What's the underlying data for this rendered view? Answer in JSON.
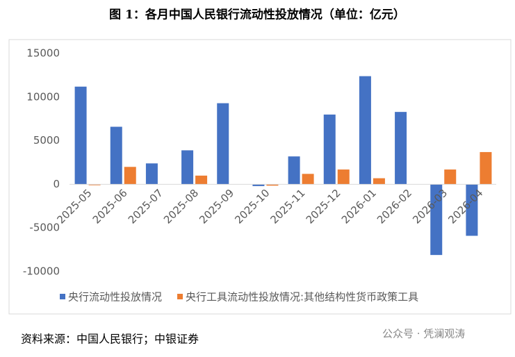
{
  "chart_data": {
    "type": "bar",
    "title": "图 1：各月中国人民银行流动性投放情况（单位：亿元）",
    "categories": [
      "2025-05",
      "2025-06",
      "2025-07",
      "2025-08",
      "2025-09",
      "2025-10",
      "2025-11",
      "2025-12",
      "2026-01",
      "2026-02",
      "2026-03",
      "2026-04"
    ],
    "series": [
      {
        "name": "央行流动性投放情况",
        "color": "#4472c4",
        "values": [
          11200,
          6600,
          2400,
          3900,
          9300,
          -200,
          3200,
          8000,
          12400,
          8300,
          -8100,
          -5900
        ]
      },
      {
        "name": "央行工具流动性投放情况:其他结构性货币政策工具",
        "color": "#ed7d31",
        "values": [
          -100,
          2000,
          null,
          1000,
          null,
          -150,
          1200,
          1700,
          700,
          null,
          1700,
          3700
        ]
      }
    ],
    "ylim": [
      -10000,
      15000
    ],
    "yticks": [
      -10000,
      -5000,
      0,
      5000,
      10000,
      15000
    ],
    "legend": "bottom",
    "source": "资料来源：中国人民银行；中银证券",
    "watermark": "公众号 · 凭澜观涛"
  }
}
